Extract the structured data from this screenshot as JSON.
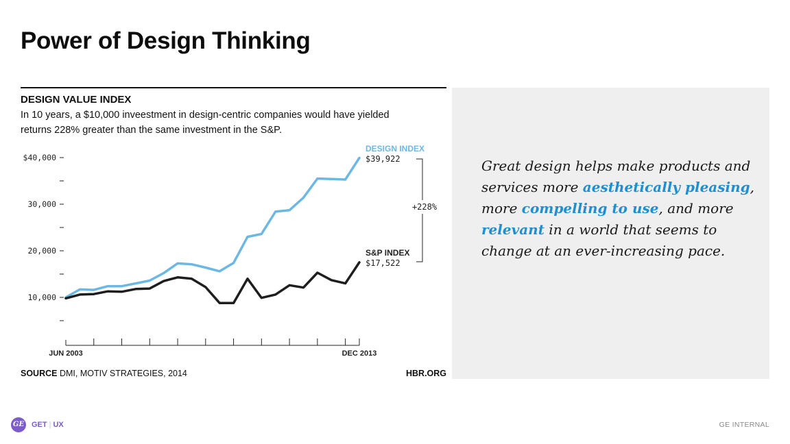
{
  "slide": {
    "title": "Power of Design Thinking",
    "footer_brand_1": "GET",
    "footer_brand_2": "UX",
    "footer_right": "GE INTERNAL",
    "logo_text": "GE"
  },
  "chart_panel": {
    "heading": "DESIGN VALUE INDEX",
    "description": "In 10 years, a $10,000 inveestment in design-centric companies would have yielded returns 228% greater than the same investment in the S&P.",
    "source_label": "SOURCE",
    "source_text": "DMI, MOTIV STRATEGIES, 2014",
    "credit": "HBR.ORG"
  },
  "quote": {
    "part1": "Great design helps make products and services more ",
    "hl1": "aesthetically pleasing",
    "part2": ", more ",
    "hl2": "compelling to use",
    "part3": ", and more ",
    "hl3": "relevant",
    "part4": " in a world that seems to change at an ever-increasing pace."
  },
  "colors": {
    "design_line": "#6cb8e3",
    "sp_line": "#1e1e1e",
    "highlight": "#1f8fcf",
    "brand": "#7b5cc8"
  },
  "chart_data": {
    "type": "line",
    "title": "DESIGN VALUE INDEX",
    "x_labels": [
      "JUN 2003",
      "DEC 2013"
    ],
    "x_points": 22,
    "ylim": [
      5000,
      41000
    ],
    "y_ticks": [
      {
        "value": 40000,
        "label": "$40,000"
      },
      {
        "value": 35000,
        "label": ""
      },
      {
        "value": 30000,
        "label": "30,000"
      },
      {
        "value": 25000,
        "label": ""
      },
      {
        "value": 20000,
        "label": "20,000"
      },
      {
        "value": 15000,
        "label": ""
      },
      {
        "value": 10000,
        "label": "10,000"
      },
      {
        "value": 5000,
        "label": ""
      }
    ],
    "series": [
      {
        "name": "DESIGN INDEX",
        "end_label": "$39,922",
        "color": "#6cb8e3",
        "values": [
          10000,
          11700,
          11600,
          12400,
          12400,
          13000,
          13600,
          15200,
          17300,
          17100,
          16400,
          15600,
          17400,
          23000,
          23600,
          28400,
          28700,
          31400,
          35500,
          35400,
          35300,
          39922
        ]
      },
      {
        "name": "S&P INDEX",
        "end_label": "$17,522",
        "color": "#1e1e1e",
        "values": [
          9800,
          10600,
          10700,
          11300,
          11200,
          11800,
          11900,
          13500,
          14300,
          14000,
          12200,
          8800,
          8800,
          14000,
          9900,
          10600,
          12600,
          12100,
          15300,
          13700,
          13000,
          17522
        ]
      }
    ],
    "annotation": "+228%"
  }
}
